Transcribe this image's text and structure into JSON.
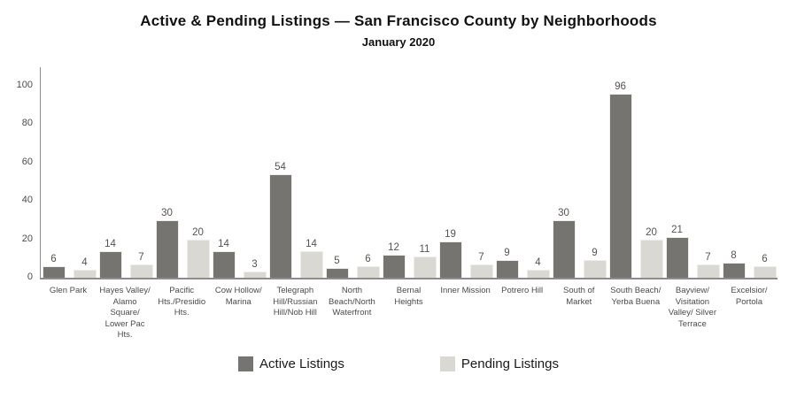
{
  "title": "Active & Pending Listings — San Francisco County by Neighborhoods",
  "subtitle": "January 2020",
  "legend": {
    "active_label": "Active Listings",
    "pending_label": "Pending Listings"
  },
  "colors": {
    "active_bar": "#767471",
    "pending_bar": "#d9d8d3",
    "bar_border": "#efede7",
    "axis_line": "#8f8d8b",
    "value_label": "#55534f",
    "tick_label": "#4d4b49",
    "category_label": "#4d4b49"
  },
  "chart_data": {
    "type": "bar",
    "title": "Active & Pending Listings — San Francisco County by Neighborhoods",
    "subtitle": "January 2020",
    "categories": [
      "Glen Park",
      "Hayes Valley/ Alamo Square/ Lower Pac Hts.",
      "Pacific Hts./Presidio Hts.",
      "Cow Hollow/ Marina",
      "Telegraph Hill/Russian Hill/Nob Hill",
      "North Beach/North Waterfront",
      "Bernal Heights",
      "Inner Mission",
      "Potrero Hill",
      "South of Market",
      "South Beach/ Yerba Buena",
      "Bayview/ Visitation Valley/ Silver Terrace",
      "Excelsior/ Portola"
    ],
    "series": [
      {
        "name": "Active Listings",
        "values": [
          6,
          14,
          30,
          14,
          54,
          5,
          12,
          19,
          9,
          30,
          96,
          21,
          8
        ]
      },
      {
        "name": "Pending Listings",
        "values": [
          4,
          7,
          20,
          3,
          14,
          6,
          11,
          7,
          4,
          9,
          20,
          7,
          6
        ]
      }
    ],
    "xlabel": "",
    "ylabel": "",
    "ylim": [
      0,
      110
    ],
    "yticks": [
      0,
      20,
      40,
      60,
      80,
      100
    ],
    "grid": false,
    "value_labels": true,
    "legend_position": "bottom"
  }
}
